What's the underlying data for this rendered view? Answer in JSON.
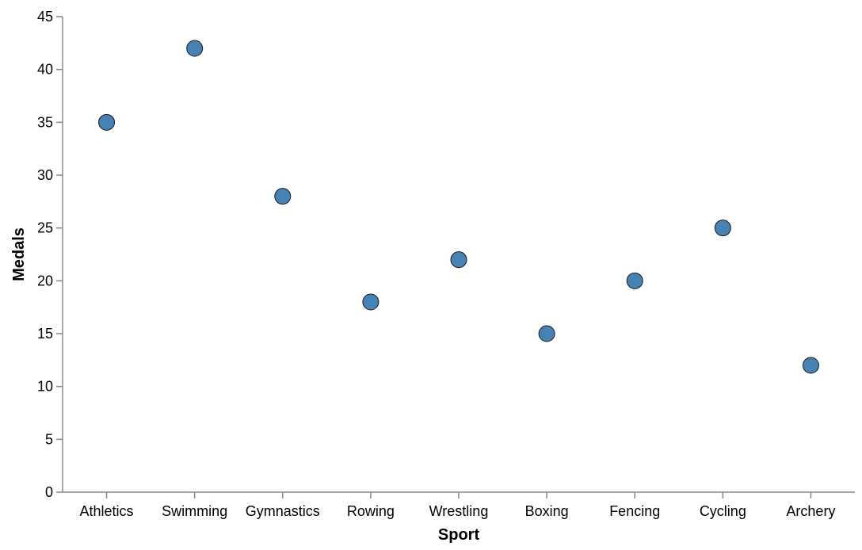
{
  "chart_data": {
    "type": "scatter",
    "title": "",
    "xlabel": "Sport",
    "ylabel": "Medals",
    "categories": [
      "Athletics",
      "Swimming",
      "Gymnastics",
      "Rowing",
      "Wrestling",
      "Boxing",
      "Fencing",
      "Cycling",
      "Archery"
    ],
    "values": [
      35,
      42,
      28,
      18,
      22,
      15,
      20,
      25,
      12
    ],
    "ylim": [
      0,
      45
    ],
    "yticks": [
      "0",
      "5",
      "10",
      "15",
      "20",
      "25",
      "30",
      "35",
      "40",
      "45"
    ],
    "grid": false,
    "legend": "none",
    "point_color": "#4682b4",
    "point_stroke": "#1a1a1a",
    "axis_color": "#888888"
  }
}
